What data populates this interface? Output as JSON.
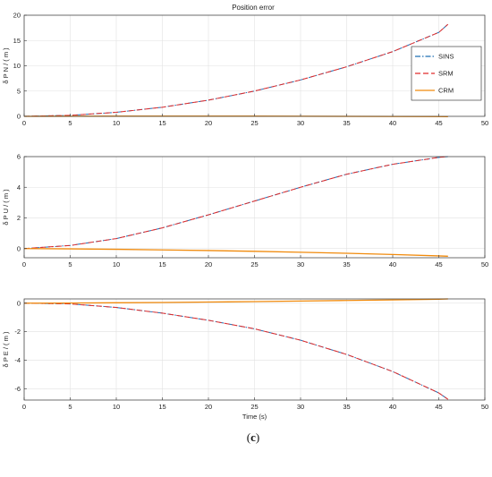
{
  "figure": {
    "title": "Position error",
    "caption_prefix": "(",
    "caption_letter": "c",
    "caption_suffix": ")"
  },
  "legend": {
    "items": [
      {
        "label": "SINS",
        "color": "#1f6fb5",
        "dash": "dashdot"
      },
      {
        "label": "SRM",
        "color": "#e02b2b",
        "dash": "dashed"
      },
      {
        "label": "CRM",
        "color": "#f08a0c",
        "dash": "solid"
      }
    ]
  },
  "chart_data": [
    {
      "type": "line",
      "title": "Position error",
      "ylabel": "δ P N / ( m )",
      "xlabel": "",
      "xlim": [
        0,
        50
      ],
      "ylim": [
        0,
        20
      ],
      "xticks": [
        0,
        5,
        10,
        15,
        20,
        25,
        30,
        35,
        40,
        45,
        50
      ],
      "yticks": [
        0,
        5,
        10,
        15,
        20
      ],
      "grid": true,
      "legend_position": "top-right",
      "x": [
        0,
        5,
        10,
        15,
        20,
        25,
        30,
        35,
        40,
        45,
        46
      ],
      "series": [
        {
          "name": "SINS",
          "values": [
            0,
            0.2,
            0.8,
            1.8,
            3.2,
            5.0,
            7.2,
            9.8,
            12.8,
            16.6,
            18.2
          ]
        },
        {
          "name": "SRM",
          "values": [
            0,
            0.2,
            0.8,
            1.8,
            3.2,
            5.0,
            7.2,
            9.8,
            12.8,
            16.6,
            18.2
          ]
        },
        {
          "name": "CRM",
          "values": [
            0,
            0.02,
            0.04,
            0.05,
            0.05,
            0.04,
            0.02,
            0.0,
            -0.02,
            -0.05,
            -0.06
          ]
        }
      ]
    },
    {
      "type": "line",
      "title": "",
      "ylabel": "δ P U / ( m )",
      "xlabel": "",
      "xlim": [
        0,
        50
      ],
      "ylim": [
        -0.6,
        6
      ],
      "xticks": [
        0,
        5,
        10,
        15,
        20,
        25,
        30,
        35,
        40,
        45,
        50
      ],
      "yticks": [
        0,
        2,
        4,
        6
      ],
      "grid": true,
      "x": [
        0,
        5,
        10,
        15,
        20,
        25,
        30,
        35,
        40,
        45,
        46
      ],
      "series": [
        {
          "name": "SINS",
          "values": [
            0,
            0.2,
            0.65,
            1.35,
            2.2,
            3.1,
            4.0,
            4.85,
            5.5,
            5.95,
            6.0
          ]
        },
        {
          "name": "SRM",
          "values": [
            0,
            0.2,
            0.65,
            1.35,
            2.2,
            3.1,
            4.0,
            4.85,
            5.5,
            5.95,
            6.0
          ]
        },
        {
          "name": "CRM",
          "values": [
            0,
            -0.02,
            -0.05,
            -0.09,
            -0.13,
            -0.18,
            -0.24,
            -0.31,
            -0.39,
            -0.48,
            -0.5
          ]
        }
      ]
    },
    {
      "type": "line",
      "title": "",
      "ylabel": "δ P E / ( m )",
      "xlabel": "Time (s)",
      "xlim": [
        0,
        50
      ],
      "ylim": [
        -6.8,
        0.3
      ],
      "xticks": [
        0,
        5,
        10,
        15,
        20,
        25,
        30,
        35,
        40,
        45,
        50
      ],
      "yticks": [
        -6,
        -4,
        -2,
        0
      ],
      "grid": true,
      "x": [
        0,
        5,
        10,
        15,
        20,
        25,
        30,
        35,
        40,
        45,
        46
      ],
      "series": [
        {
          "name": "SINS",
          "values": [
            0,
            -0.05,
            -0.3,
            -0.7,
            -1.2,
            -1.8,
            -2.6,
            -3.6,
            -4.8,
            -6.3,
            -6.75
          ]
        },
        {
          "name": "SRM",
          "values": [
            0,
            -0.05,
            -0.3,
            -0.7,
            -1.2,
            -1.8,
            -2.6,
            -3.6,
            -4.8,
            -6.3,
            -6.75
          ]
        },
        {
          "name": "CRM",
          "values": [
            0,
            0.01,
            0.03,
            0.05,
            0.08,
            0.11,
            0.15,
            0.19,
            0.23,
            0.28,
            0.3
          ]
        }
      ]
    }
  ]
}
